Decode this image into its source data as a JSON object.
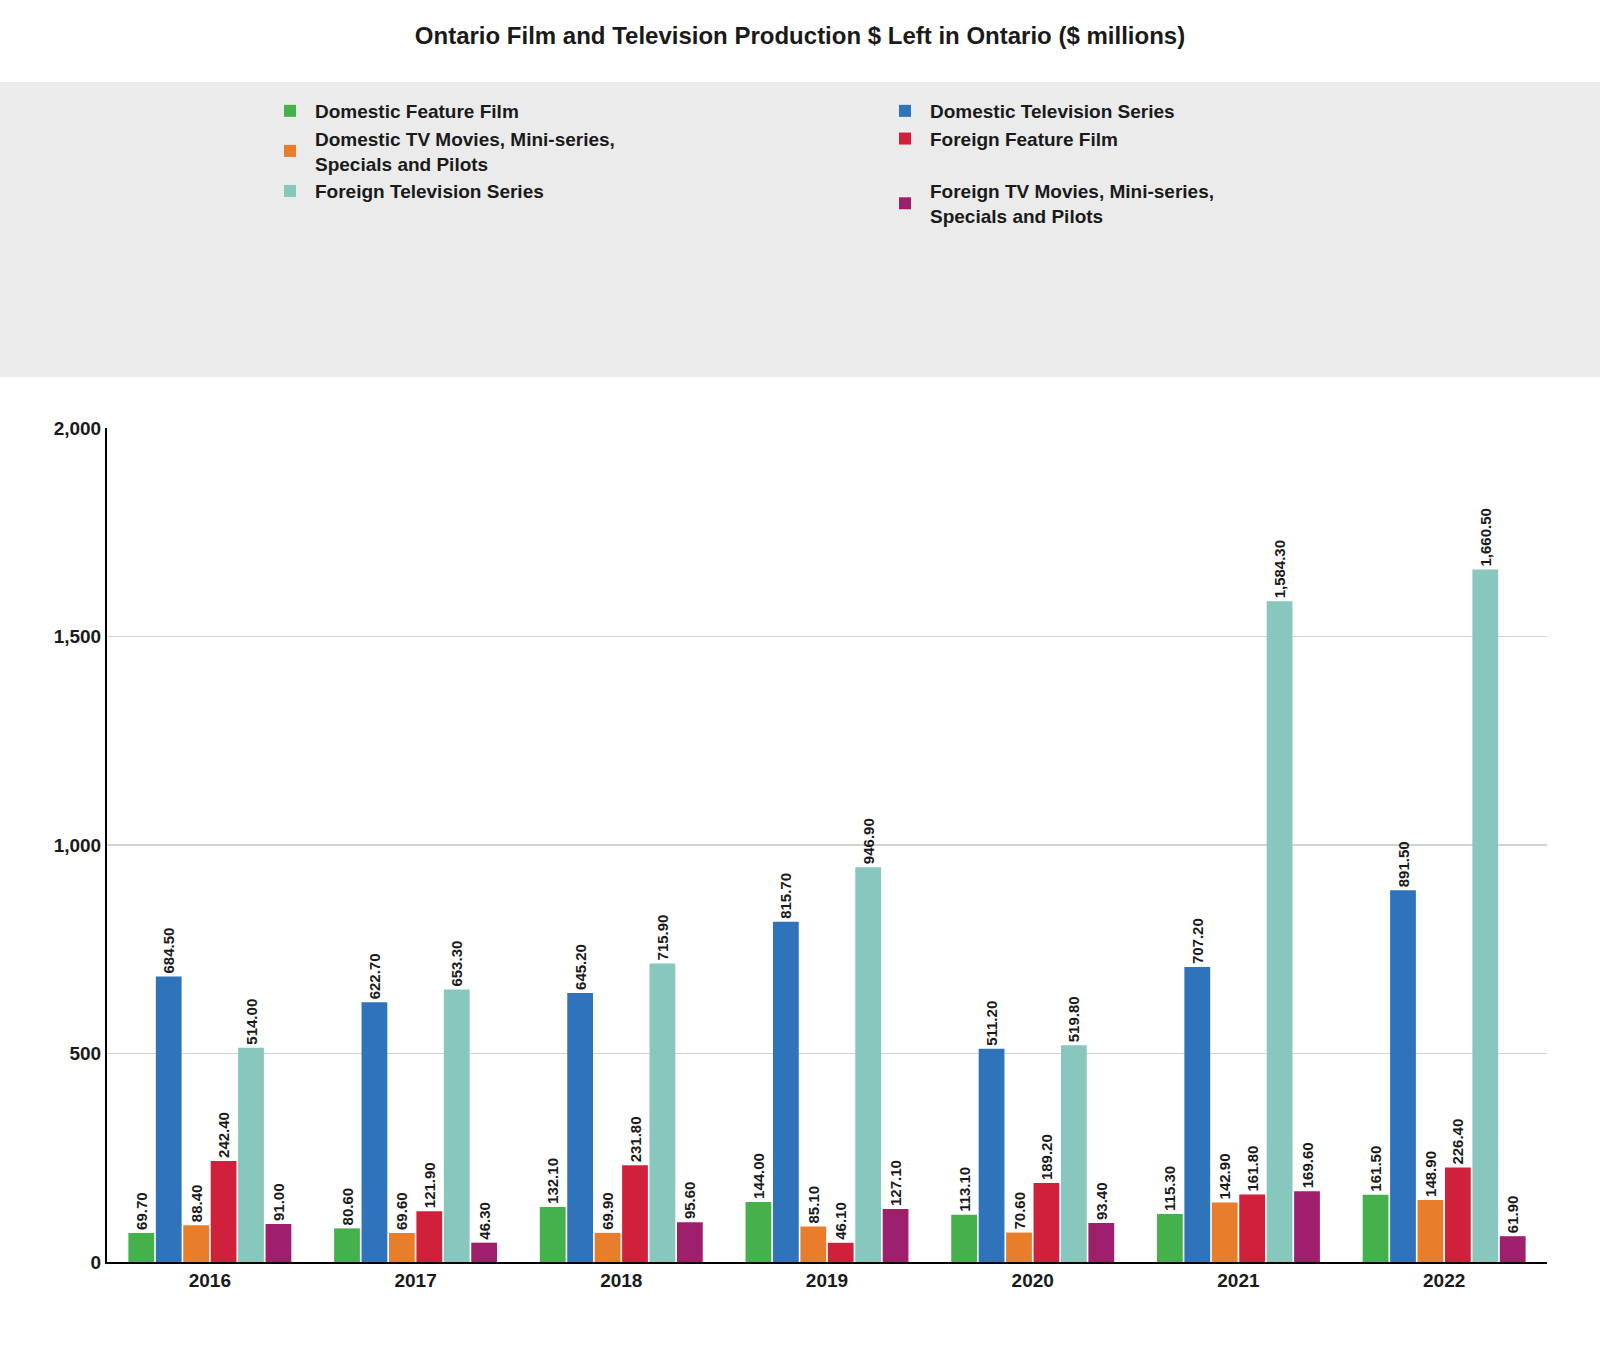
{
  "chart_data": {
    "type": "bar",
    "title": "Ontario Film and Television Production $ Left in Ontario ($ millions)",
    "categories": [
      "2016",
      "2017",
      "2018",
      "2019",
      "2020",
      "2021",
      "2022"
    ],
    "series": [
      {
        "name": "Domestic Feature Film",
        "color": "#45b14a",
        "values": [
          69.7,
          80.6,
          132.1,
          144.0,
          113.1,
          115.3,
          161.5
        ],
        "value_labels": [
          "69.70",
          "80.60",
          "132.10",
          "144.00",
          "113.10",
          "115.30",
          "161.50"
        ]
      },
      {
        "name": "Domestic Television Series",
        "color": "#2f73ba",
        "values": [
          684.5,
          622.7,
          645.2,
          815.7,
          511.2,
          707.2,
          891.5
        ],
        "value_labels": [
          "684.50",
          "622.70",
          "645.20",
          "815.70",
          "511.20",
          "707.20",
          "891.50"
        ]
      },
      {
        "name": "Domestic TV Movies, Mini-series, Specials and Pilots",
        "color": "#e87d2b",
        "values": [
          88.4,
          69.6,
          69.9,
          85.1,
          70.6,
          142.9,
          148.9
        ],
        "value_labels": [
          "88.40",
          "69.60",
          "69.90",
          "85.10",
          "70.60",
          "142.90",
          "148.90"
        ]
      },
      {
        "name": "Foreign Feature Film",
        "color": "#d1203c",
        "values": [
          242.4,
          121.9,
          231.8,
          46.1,
          189.2,
          161.8,
          226.4
        ],
        "value_labels": [
          "242.40",
          "121.90",
          "231.80",
          "46.10",
          "189.20",
          "161.80",
          "226.40"
        ]
      },
      {
        "name": "Foreign Television Series",
        "color": "#87c7bd",
        "values": [
          514.0,
          653.3,
          715.9,
          946.9,
          519.8,
          1584.3,
          1660.5
        ],
        "value_labels": [
          "514.00",
          "653.30",
          "715.90",
          "946.90",
          "519.80",
          "1,584.30",
          "1,660.50"
        ]
      },
      {
        "name": "Foreign TV Movies, Mini-series, Specials and Pilots",
        "color": "#9e1f6b",
        "values": [
          91.0,
          46.3,
          95.6,
          127.1,
          93.4,
          169.6,
          61.9
        ],
        "value_labels": [
          "91.00",
          "46.30",
          "95.60",
          "127.10",
          "93.40",
          "169.60",
          "61.90"
        ]
      }
    ],
    "ylim": [
      0,
      2000
    ],
    "yticks": [
      0,
      500,
      {
        "value": 1000,
        "label": "1,000"
      },
      {
        "value": 1500,
        "label": "1,500"
      },
      {
        "value": 2000,
        "label": "2,000"
      }
    ],
    "grid": true,
    "legend": "top",
    "data_labels": true
  }
}
